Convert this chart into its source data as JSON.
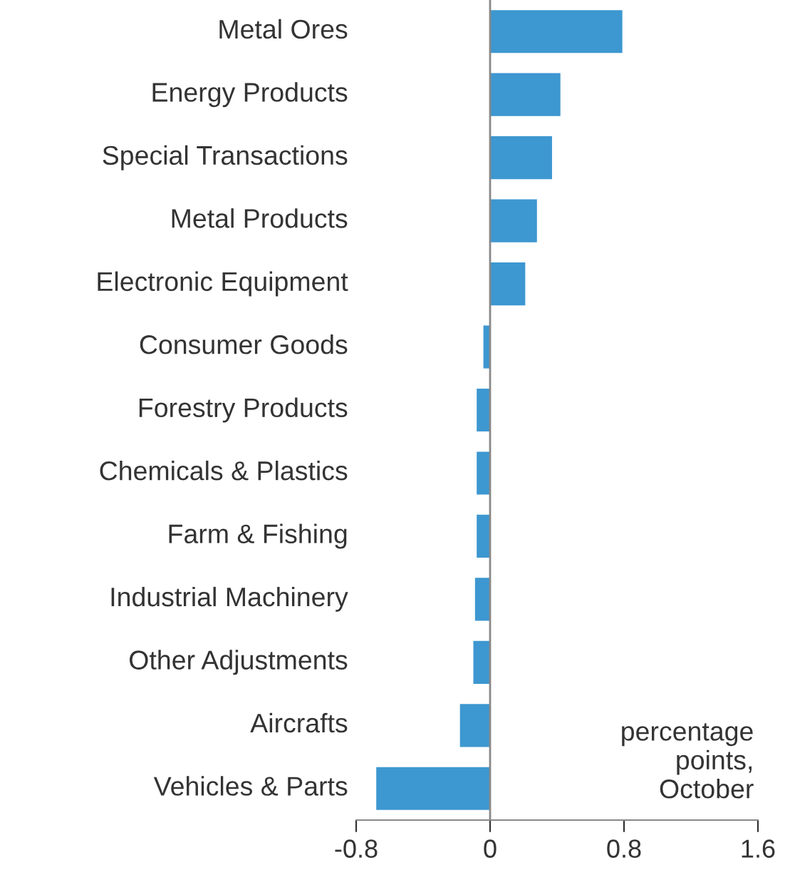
{
  "chart_data": {
    "type": "bar",
    "orientation": "horizontal",
    "categories": [
      "Metal Ores",
      "Energy Products",
      "Special Transactions",
      "Metal Products",
      "Electronic Equipment",
      "Consumer Goods",
      "Forestry Products",
      "Chemicals & Plastics",
      "Farm & Fishing",
      "Industrial Machinery",
      "Other Adjustments",
      "Aircrafts",
      "Vehicles & Parts"
    ],
    "values": [
      0.79,
      0.42,
      0.37,
      0.28,
      0.21,
      -0.04,
      -0.08,
      -0.08,
      -0.08,
      -0.09,
      -0.1,
      -0.18,
      -0.68
    ],
    "color": "#3d97d0",
    "xlim": [
      -0.8,
      1.6
    ],
    "xticks": [
      -0.8,
      0,
      0.8,
      1.6
    ],
    "ref_lines": [
      {
        "axis": "x",
        "value": 0,
        "color": "#888888"
      }
    ],
    "annotations": [
      "percentage\npoints,\nOctober"
    ]
  }
}
